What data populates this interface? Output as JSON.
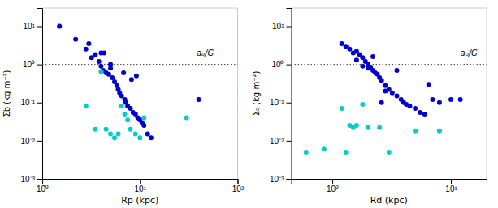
{
  "chart_data": [
    {
      "type": "scatter",
      "log": true,
      "grid": false,
      "x_label": "Rp (kpc)",
      "y_label": "Σb (kg m⁻²)",
      "xlim": [
        1,
        100
      ],
      "ylim": [
        0.001,
        30
      ],
      "xticks": [
        {
          "value": 1,
          "label": "10⁰"
        },
        {
          "value": 10,
          "label": "10¹"
        },
        {
          "value": 100,
          "label": "10²"
        }
      ],
      "yticks": [
        {
          "value": 0.001,
          "label": "10⁻³"
        },
        {
          "value": 0.01,
          "label": "10⁻²"
        },
        {
          "value": 0.1,
          "label": "10⁻¹"
        },
        {
          "value": 1,
          "label": "10⁰"
        },
        {
          "value": 10,
          "label": "10¹"
        }
      ],
      "series": [
        {
          "color": "#0000CC",
          "x": [
            1.5,
            2.2,
            2.8,
            3.2,
            3.5,
            3.8,
            4.0,
            4.0,
            4.2,
            4.5,
            4.8,
            5.0,
            5.0,
            5.2,
            5.5,
            5.8,
            6.0,
            6.2,
            6.5,
            6.8,
            7.0,
            7.2,
            7.5,
            8.0,
            8.2,
            8.5,
            9.0,
            9.2,
            9.5,
            10.0,
            10.5,
            11.0,
            12.0,
            13.0,
            40.0,
            4.3,
            3.0
          ],
          "values": [
            10.0,
            4.5,
            2.5,
            1.5,
            1.8,
            1.2,
            0.9,
            2.0,
            0.7,
            0.6,
            0.55,
            0.8,
            1.0,
            0.45,
            0.35,
            0.28,
            0.22,
            0.18,
            0.15,
            0.6,
            0.12,
            0.1,
            0.08,
            0.07,
            0.4,
            0.055,
            0.05,
            0.5,
            0.04,
            0.035,
            0.03,
            0.025,
            0.015,
            0.012,
            0.12,
            2.0,
            3.5
          ]
        },
        {
          "color": "#00CCCC",
          "x": [
            2.8,
            3.5,
            4.5,
            5.0,
            5.5,
            6.0,
            6.5,
            7.0,
            7.5,
            8.0,
            9.0,
            10.0,
            11.0,
            30.0,
            4.0
          ],
          "values": [
            0.08,
            0.02,
            0.02,
            0.015,
            0.012,
            0.015,
            0.08,
            0.05,
            0.035,
            0.02,
            0.015,
            0.012,
            0.04,
            0.04,
            0.65
          ]
        }
      ],
      "reference_lines": [
        {
          "y": 1.0,
          "color": "#444444",
          "line_style": "dotted"
        }
      ],
      "annotations": [
        {
          "text": "a₀/G",
          "x": 38,
          "y": 1.5
        }
      ]
    },
    {
      "type": "scatter",
      "log": true,
      "grid": false,
      "x_label": "Rd (kpc)",
      "y_label": "Σ₀ (kg m⁻²)",
      "xlim": [
        0.45,
        20
      ],
      "ylim": [
        0.001,
        30
      ],
      "xticks": [
        {
          "value": 1,
          "label": "10⁰"
        },
        {
          "value": 10,
          "label": "10¹"
        }
      ],
      "yticks": [
        {
          "value": 0.001,
          "label": "10⁻³"
        },
        {
          "value": 0.01,
          "label": "10⁻²"
        },
        {
          "value": 0.1,
          "label": "10⁻¹"
        },
        {
          "value": 1,
          "label": "10⁰"
        },
        {
          "value": 10,
          "label": "10¹"
        }
      ],
      "series": [
        {
          "color": "#0000CC",
          "x": [
            1.2,
            1.3,
            1.4,
            1.5,
            1.6,
            1.7,
            1.8,
            1.9,
            2.0,
            2.0,
            2.1,
            2.2,
            2.3,
            2.4,
            2.5,
            2.6,
            2.8,
            2.8,
            3.0,
            3.2,
            3.5,
            3.5,
            3.8,
            4.0,
            4.2,
            4.5,
            5.0,
            5.5,
            6.0,
            6.5,
            7.0,
            8.0,
            10.0,
            12.0,
            2.2,
            1.8,
            1.6,
            2.6
          ],
          "values": [
            3.5,
            3.0,
            2.5,
            2.0,
            2.2,
            1.8,
            1.5,
            1.2,
            1.0,
            0.8,
            0.85,
            0.7,
            0.6,
            0.55,
            0.45,
            0.38,
            0.28,
            0.2,
            0.22,
            0.18,
            0.15,
            0.7,
            0.12,
            0.1,
            0.09,
            0.08,
            0.07,
            0.055,
            0.05,
            0.3,
            0.12,
            0.1,
            0.12,
            0.12,
            1.6,
            0.9,
            1.3,
            0.1
          ]
        },
        {
          "color": "#00CCCC",
          "x": [
            0.6,
            0.85,
            1.2,
            1.4,
            1.5,
            1.6,
            1.8,
            2.0,
            2.5,
            3.0,
            5.0,
            8.0,
            1.3
          ],
          "values": [
            0.005,
            0.006,
            0.07,
            0.025,
            0.022,
            0.025,
            0.09,
            0.022,
            0.022,
            0.005,
            0.018,
            0.018,
            0.005
          ]
        }
      ],
      "reference_lines": [
        {
          "y": 1.0,
          "color": "#444444",
          "line_style": "dotted"
        }
      ],
      "annotations": [
        {
          "text": "a₀/G",
          "x": 12,
          "y": 1.5
        }
      ]
    }
  ]
}
